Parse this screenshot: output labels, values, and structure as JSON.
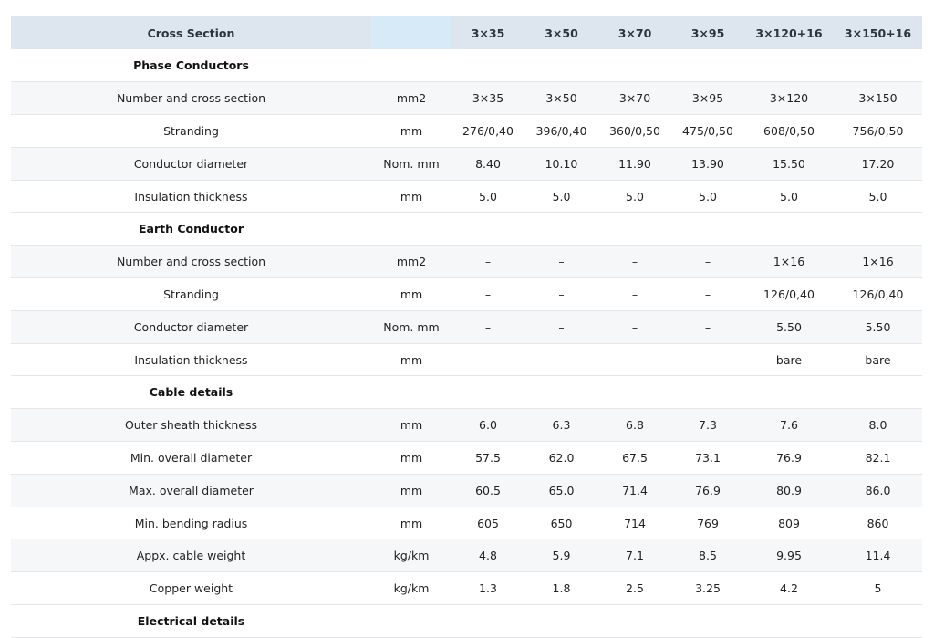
{
  "header": [
    "Cross Section",
    "",
    "3×35",
    "3×50",
    "3×70",
    "3×95",
    "3×120+16",
    "3×150+16"
  ],
  "rows": [
    {
      "type": "section",
      "label": "Phase Conductors"
    },
    {
      "type": "data",
      "label": "Number and cross section",
      "unit": "mm2",
      "values": [
        "3×35",
        "3×50",
        "3×70",
        "3×95",
        "3×120",
        "3×150"
      ]
    },
    {
      "type": "data",
      "label": "Stranding",
      "unit": "mm",
      "values": [
        "276/0,40",
        "396/0,40",
        "360/0,50",
        "475/0,50",
        "608/0,50",
        "756/0,50"
      ]
    },
    {
      "type": "data",
      "label": "Conductor diameter",
      "unit": "Nom. mm",
      "values": [
        "8.40",
        "10.10",
        "11.90",
        "13.90",
        "15.50",
        "17.20"
      ]
    },
    {
      "type": "data",
      "label": "Insulation thickness",
      "unit": "mm",
      "values": [
        "5.0",
        "5.0",
        "5.0",
        "5.0",
        "5.0",
        "5.0"
      ]
    },
    {
      "type": "section",
      "label": "Earth Conductor"
    },
    {
      "type": "data",
      "label": "Number and cross section",
      "unit": "mm2",
      "values": [
        "–",
        "–",
        "–",
        "–",
        "1×16",
        "1×16"
      ]
    },
    {
      "type": "data",
      "label": "Stranding",
      "unit": "mm",
      "values": [
        "–",
        "–",
        "–",
        "–",
        "126/0,40",
        "126/0,40"
      ]
    },
    {
      "type": "data",
      "label": "Conductor diameter",
      "unit": "Nom. mm",
      "values": [
        "–",
        "–",
        "–",
        "–",
        "5.50",
        "5.50"
      ]
    },
    {
      "type": "data",
      "label": "Insulation thickness",
      "unit": "mm",
      "values": [
        "–",
        "–",
        "–",
        "–",
        "bare",
        "bare"
      ]
    },
    {
      "type": "section",
      "label": "Cable details"
    },
    {
      "type": "data",
      "label": "Outer sheath thickness",
      "unit": "mm",
      "values": [
        "6.0",
        "6.3",
        "6.8",
        "7.3",
        "7.6",
        "8.0"
      ]
    },
    {
      "type": "data",
      "label": "Min. overall diameter",
      "unit": "mm",
      "values": [
        "57.5",
        "62.0",
        "67.5",
        "73.1",
        "76.9",
        "82.1"
      ]
    },
    {
      "type": "data",
      "label": "Max. overall diameter",
      "unit": "mm",
      "values": [
        "60.5",
        "65.0",
        "71.4",
        "76.9",
        "80.9",
        "86.0"
      ]
    },
    {
      "type": "data",
      "label": "Min. bending radius",
      "unit": "mm",
      "values": [
        "605",
        "650",
        "714",
        "769",
        "809",
        "860"
      ]
    },
    {
      "type": "data",
      "label": "Appx. cable weight",
      "unit": "kg/km",
      "values": [
        "4.8",
        "5.9",
        "7.1",
        "8.5",
        "9.95",
        "11.4"
      ]
    },
    {
      "type": "data",
      "label": "Copper weight",
      "unit": "kg/km",
      "values": [
        "1.3",
        "1.8",
        "2.5",
        "3.25",
        "4.2",
        "5"
      ]
    },
    {
      "type": "section",
      "label": "Electrical details"
    }
  ]
}
